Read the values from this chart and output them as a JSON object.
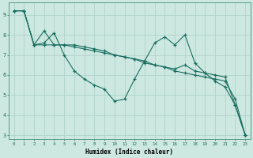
{
  "xlabel": "Humidex (Indice chaleur)",
  "bg_color": "#cce8e0",
  "grid_color": "#aacfc8",
  "line_color": "#1a6e60",
  "xlim": [
    -0.5,
    23.5
  ],
  "ylim": [
    2.8,
    9.6
  ],
  "yticks": [
    3,
    4,
    5,
    6,
    7,
    8,
    9
  ],
  "xticks": [
    0,
    1,
    2,
    3,
    4,
    5,
    6,
    7,
    8,
    9,
    10,
    11,
    12,
    13,
    14,
    15,
    16,
    17,
    18,
    19,
    20,
    21,
    22,
    23
  ],
  "series": [
    {
      "x": [
        0,
        1,
        2,
        3,
        4,
        5,
        6,
        7,
        8,
        9,
        10,
        11,
        12,
        13,
        14,
        15,
        16,
        17,
        18,
        19,
        20,
        21,
        22,
        23
      ],
      "y": [
        9.2,
        9.2,
        7.5,
        7.6,
        8.1,
        7.0,
        6.2,
        5.8,
        5.5,
        5.3,
        4.7,
        4.8,
        5.8,
        6.7,
        7.6,
        7.9,
        7.5,
        8.0,
        6.6,
        6.1,
        5.7,
        5.4,
        4.5,
        3.0
      ]
    },
    {
      "x": [
        0,
        1,
        2,
        3,
        4,
        5,
        6,
        7,
        8,
        9,
        10,
        11,
        12,
        13,
        14,
        15,
        16,
        17,
        18,
        19,
        20,
        21,
        22,
        23
      ],
      "y": [
        9.2,
        9.2,
        7.5,
        7.5,
        7.5,
        7.5,
        7.4,
        7.3,
        7.2,
        7.1,
        7.0,
        6.9,
        6.8,
        6.6,
        6.5,
        6.4,
        6.2,
        6.1,
        6.0,
        5.9,
        5.8,
        5.7,
        4.8,
        3.0
      ]
    },
    {
      "x": [
        0,
        1,
        2,
        3,
        4,
        5,
        6,
        7,
        8,
        9,
        10,
        11,
        12,
        13,
        14,
        15,
        16,
        17,
        18,
        19,
        20,
        21,
        22,
        23
      ],
      "y": [
        9.2,
        9.2,
        7.5,
        8.2,
        7.5,
        7.5,
        7.5,
        7.4,
        7.3,
        7.2,
        7.0,
        6.9,
        6.8,
        6.7,
        6.5,
        6.4,
        6.3,
        6.5,
        6.2,
        6.1,
        6.0,
        5.9,
        4.5,
        3.0
      ]
    }
  ]
}
